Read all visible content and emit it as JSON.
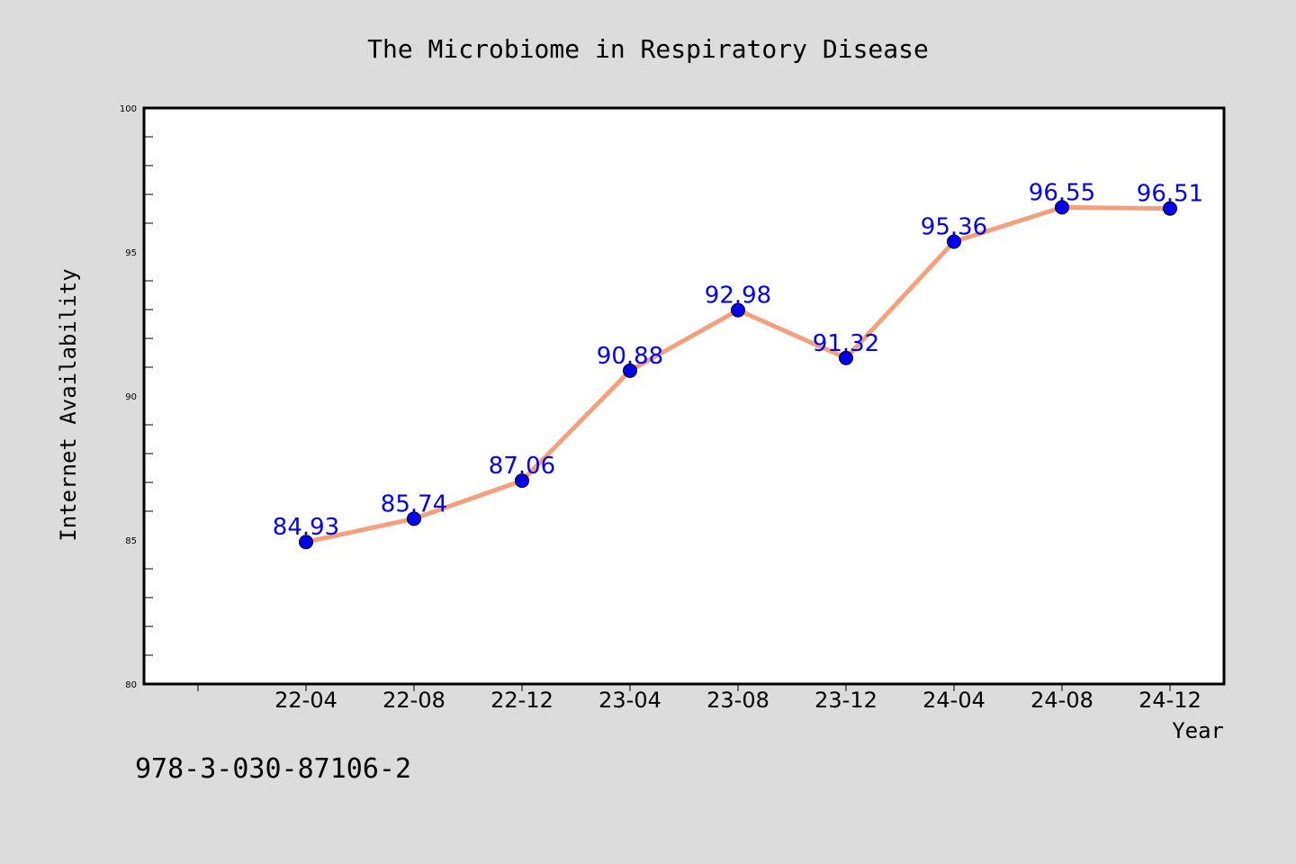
{
  "chart_data": {
    "type": "line",
    "title": "The Microbiome in Respiratory Disease",
    "xlabel": "Year",
    "ylabel": "Internet Availability",
    "categories": [
      "22-04",
      "22-08",
      "22-12",
      "23-04",
      "23-08",
      "23-12",
      "24-04",
      "24-08",
      "24-12"
    ],
    "series": [
      {
        "values": [
          84.93,
          85.74,
          87.06,
          90.88,
          92.98,
          91.32,
          95.36,
          96.55,
          96.51
        ],
        "line_color": "#f4a07c",
        "marker_color": "#0000ee",
        "label_color": "#0000ee"
      }
    ],
    "ylim": [
      80,
      100
    ],
    "yticks": [
      80,
      85,
      90,
      95,
      100
    ],
    "grid": false,
    "legend": "none"
  },
  "footnote": "978-3-030-87106-2",
  "colors": {
    "background": "#dcdcdc",
    "plot_background": "#ffffff",
    "axis": "#000000"
  }
}
